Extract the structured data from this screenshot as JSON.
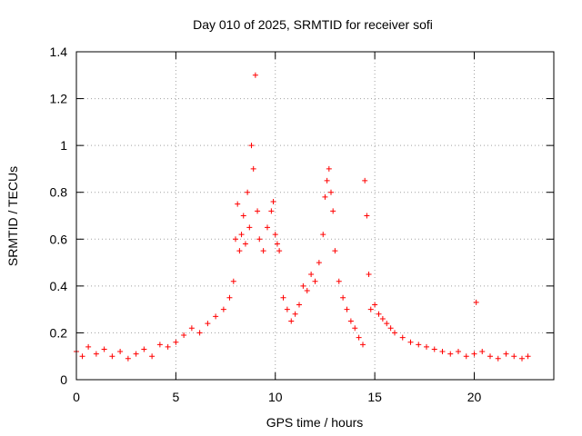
{
  "chart_data": {
    "type": "scatter",
    "title": "Day 010 of 2025, SRMTID for receiver sofi",
    "xlabel": "GPS time / hours",
    "ylabel": "SRMTID / TECUs",
    "xlim": [
      0,
      24
    ],
    "ylim": [
      0,
      1.4
    ],
    "xticks": [
      0,
      5,
      10,
      15,
      20
    ],
    "xtick_labels": [
      "0",
      "5",
      "10",
      "15",
      "20"
    ],
    "yticks": [
      0,
      0.2,
      0.4,
      0.6,
      0.8,
      1.0,
      1.2,
      1.4
    ],
    "ytick_labels": [
      "0",
      "0.2",
      "0.4",
      "0.6",
      "0.8",
      "1",
      "1.2",
      "1.4"
    ],
    "grid": true,
    "marker": "+",
    "color": "#ff0000",
    "series": [
      {
        "name": "SRMTID",
        "x": [
          0.0,
          0.3,
          0.6,
          1.0,
          1.4,
          1.8,
          2.2,
          2.6,
          3.0,
          3.4,
          3.8,
          4.2,
          4.6,
          5.0,
          5.4,
          5.8,
          6.2,
          6.6,
          7.0,
          7.4,
          7.7,
          7.9,
          8.0,
          8.1,
          8.2,
          8.3,
          8.4,
          8.5,
          8.6,
          8.7,
          8.8,
          8.9,
          9.0,
          9.1,
          9.2,
          9.4,
          9.6,
          9.8,
          9.9,
          10.0,
          10.1,
          10.2,
          10.4,
          10.6,
          10.8,
          11.0,
          11.2,
          11.4,
          11.6,
          11.8,
          12.0,
          12.2,
          12.4,
          12.5,
          12.6,
          12.7,
          12.8,
          12.9,
          13.0,
          13.2,
          13.4,
          13.6,
          13.8,
          14.0,
          14.2,
          14.4,
          14.5,
          14.6,
          14.7,
          14.8,
          15.0,
          15.2,
          15.4,
          15.6,
          15.8,
          16.0,
          16.4,
          16.8,
          17.2,
          17.6,
          18.0,
          18.4,
          18.8,
          19.2,
          19.6,
          20.0,
          20.1,
          20.4,
          20.8,
          21.2,
          21.6,
          22.0,
          22.4,
          22.7
        ],
        "y": [
          0.12,
          0.1,
          0.14,
          0.11,
          0.13,
          0.1,
          0.12,
          0.09,
          0.11,
          0.13,
          0.1,
          0.15,
          0.14,
          0.16,
          0.19,
          0.22,
          0.2,
          0.24,
          0.27,
          0.3,
          0.35,
          0.42,
          0.6,
          0.75,
          0.55,
          0.62,
          0.7,
          0.58,
          0.8,
          0.65,
          1.0,
          0.9,
          1.3,
          0.72,
          0.6,
          0.55,
          0.65,
          0.72,
          0.76,
          0.62,
          0.58,
          0.55,
          0.35,
          0.3,
          0.25,
          0.28,
          0.32,
          0.4,
          0.38,
          0.45,
          0.42,
          0.5,
          0.62,
          0.78,
          0.85,
          0.9,
          0.8,
          0.72,
          0.55,
          0.42,
          0.35,
          0.3,
          0.25,
          0.22,
          0.18,
          0.15,
          0.85,
          0.7,
          0.45,
          0.3,
          0.32,
          0.28,
          0.26,
          0.24,
          0.22,
          0.2,
          0.18,
          0.16,
          0.15,
          0.14,
          0.13,
          0.12,
          0.11,
          0.12,
          0.1,
          0.11,
          0.33,
          0.12,
          0.1,
          0.09,
          0.11,
          0.1,
          0.09,
          0.1
        ]
      }
    ]
  }
}
